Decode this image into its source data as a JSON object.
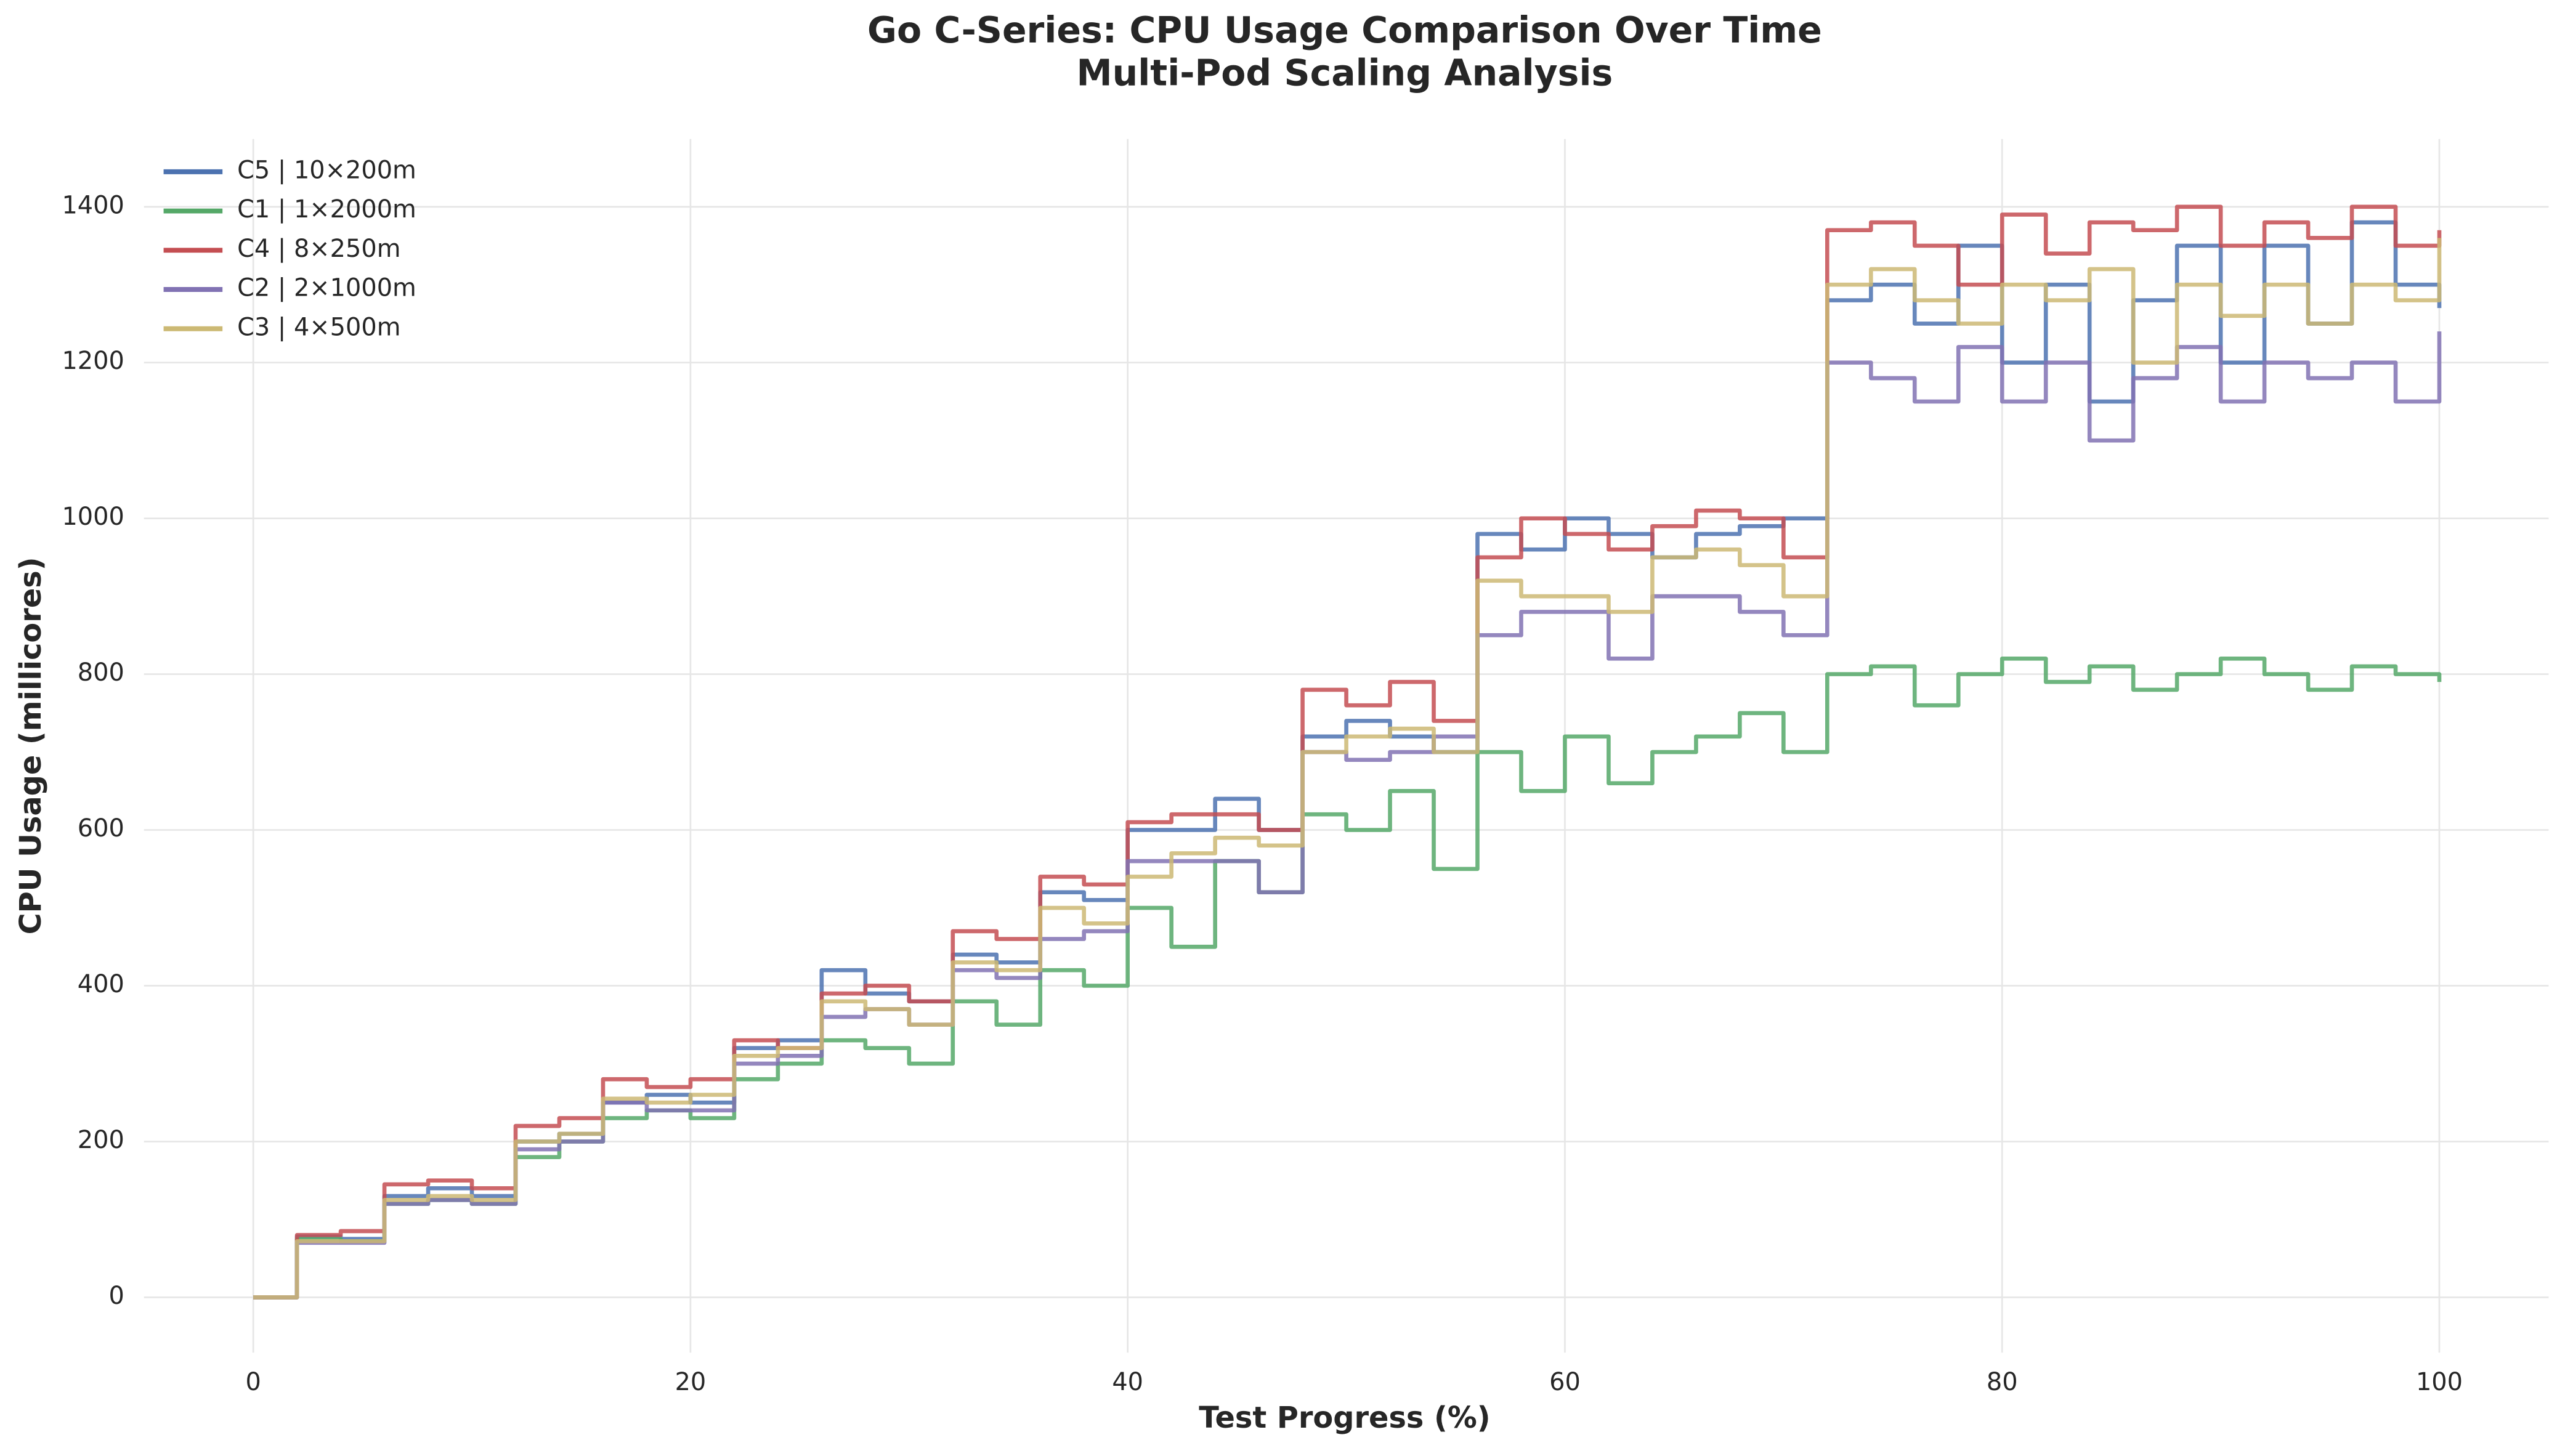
{
  "chart_data": {
    "type": "line",
    "step": "post",
    "title": "Go C-Series: CPU Usage Comparison Over Time",
    "subtitle": "Multi-Pod Scaling Analysis",
    "x_label": "Test Progress (%)",
    "y_label": "CPU Usage (millicores)",
    "x": [
      0,
      2,
      4,
      6,
      8,
      10,
      12,
      14,
      16,
      18,
      20,
      22,
      24,
      26,
      28,
      30,
      32,
      34,
      36,
      38,
      40,
      42,
      44,
      46,
      48,
      50,
      52,
      54,
      56,
      58,
      60,
      62,
      64,
      66,
      68,
      70,
      72,
      74,
      76,
      78,
      80,
      82,
      84,
      86,
      88,
      90,
      92,
      94,
      96,
      98,
      100
    ],
    "series": [
      {
        "name": "C5 | 10×200m",
        "color": "#4c72b0",
        "values": [
          0,
          78,
          75,
          130,
          140,
          130,
          200,
          210,
          250,
          260,
          250,
          320,
          330,
          420,
          390,
          380,
          440,
          430,
          520,
          510,
          600,
          600,
          640,
          600,
          720,
          740,
          720,
          700,
          980,
          960,
          1000,
          980,
          950,
          980,
          990,
          1000,
          1280,
          1300,
          1250,
          1350,
          1200,
          1300,
          1150,
          1280,
          1350,
          1200,
          1350,
          1250,
          1380,
          1300,
          1270
        ]
      },
      {
        "name": "C1 | 1×2000m",
        "color": "#55a868",
        "values": [
          0,
          75,
          72,
          120,
          125,
          120,
          180,
          200,
          230,
          240,
          230,
          280,
          300,
          330,
          320,
          300,
          380,
          350,
          420,
          400,
          500,
          450,
          560,
          520,
          620,
          600,
          650,
          550,
          700,
          650,
          720,
          660,
          700,
          720,
          750,
          700,
          800,
          810,
          760,
          800,
          820,
          790,
          810,
          780,
          800,
          820,
          800,
          780,
          810,
          800,
          790
        ]
      },
      {
        "name": "C4 | 8×250m",
        "color": "#c44e52",
        "values": [
          0,
          80,
          85,
          145,
          150,
          140,
          220,
          230,
          280,
          270,
          280,
          330,
          320,
          390,
          400,
          380,
          470,
          460,
          540,
          530,
          610,
          620,
          620,
          600,
          780,
          760,
          790,
          740,
          950,
          1000,
          980,
          960,
          990,
          1010,
          1000,
          950,
          1370,
          1380,
          1350,
          1300,
          1390,
          1340,
          1380,
          1370,
          1400,
          1350,
          1380,
          1360,
          1400,
          1350,
          1370
        ]
      },
      {
        "name": "C2 | 2×1000m",
        "color": "#8172b3",
        "values": [
          0,
          70,
          70,
          120,
          125,
          120,
          190,
          200,
          250,
          240,
          240,
          300,
          310,
          360,
          370,
          350,
          420,
          410,
          460,
          470,
          560,
          560,
          560,
          520,
          700,
          690,
          700,
          720,
          850,
          880,
          880,
          820,
          900,
          900,
          880,
          850,
          1200,
          1180,
          1150,
          1220,
          1150,
          1200,
          1100,
          1180,
          1220,
          1150,
          1200,
          1180,
          1200,
          1150,
          1240
        ]
      },
      {
        "name": "C3 | 4×500m",
        "color": "#ccb974",
        "values": [
          0,
          72,
          72,
          125,
          130,
          125,
          200,
          210,
          255,
          250,
          260,
          310,
          320,
          380,
          370,
          350,
          430,
          420,
          500,
          480,
          540,
          570,
          590,
          580,
          700,
          720,
          730,
          700,
          920,
          900,
          900,
          880,
          950,
          960,
          940,
          900,
          1300,
          1320,
          1280,
          1250,
          1300,
          1280,
          1320,
          1200,
          1300,
          1260,
          1300,
          1250,
          1300,
          1280,
          1360
        ]
      }
    ],
    "xlim": [
      -5,
      105
    ],
    "xticks": [
      0,
      20,
      40,
      60,
      80,
      100
    ],
    "ylim": [
      -71,
      1487
    ],
    "yticks": [
      0,
      200,
      400,
      600,
      800,
      1000,
      1200,
      1400
    ],
    "grid": true,
    "legend": "upper left"
  }
}
